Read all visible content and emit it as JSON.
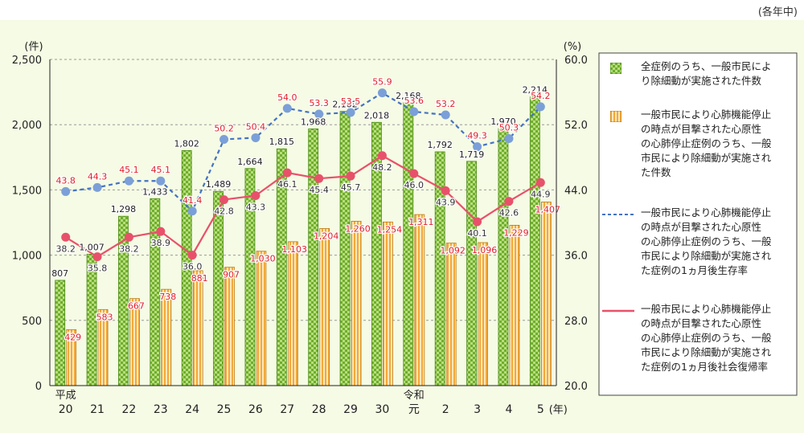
{
  "note": "(各年中)",
  "chart_data": {
    "type": "bar",
    "categories": [
      {
        "top": "平成",
        "bottom": "20"
      },
      {
        "top": "",
        "bottom": "21"
      },
      {
        "top": "",
        "bottom": "22"
      },
      {
        "top": "",
        "bottom": "23"
      },
      {
        "top": "",
        "bottom": "24"
      },
      {
        "top": "",
        "bottom": "25"
      },
      {
        "top": "",
        "bottom": "26"
      },
      {
        "top": "",
        "bottom": "27"
      },
      {
        "top": "",
        "bottom": "28"
      },
      {
        "top": "",
        "bottom": "29"
      },
      {
        "top": "",
        "bottom": "30"
      },
      {
        "top": "令和",
        "bottom": "元"
      },
      {
        "top": "",
        "bottom": "2"
      },
      {
        "top": "",
        "bottom": "3"
      },
      {
        "top": "",
        "bottom": "4"
      },
      {
        "top": "",
        "bottom": "5"
      }
    ],
    "x_unit": "(年)",
    "left_axis": {
      "unit": "(件)",
      "min": 0,
      "max": 2500,
      "ticks": [
        "0",
        "500",
        "1,000",
        "1,500",
        "2,000",
        "2,500"
      ]
    },
    "right_axis": {
      "unit": "(%)",
      "min": 20.0,
      "max": 60.0,
      "ticks": [
        "20.0",
        "28.0",
        "36.0",
        "44.0",
        "52.0",
        "60.0"
      ]
    },
    "grid": "horizontal dashed",
    "legend_position": "right",
    "series": [
      {
        "name": "全症例のうち、一般市民により除細動が実施された件数",
        "kind": "bar",
        "axis": "left",
        "pattern": "green-check",
        "color": "#8dc63f",
        "values": [
          807,
          1007,
          1298,
          1433,
          1802,
          1489,
          1664,
          1815,
          1968,
          2102,
          2018,
          2168,
          1792,
          1719,
          1970,
          2214
        ],
        "labels": [
          "807",
          "1,007",
          "1,298",
          "1,433",
          "1,802",
          "1,489",
          "1,664",
          "1,815",
          "1,968",
          "2,102",
          "2,018",
          "2,168",
          "1,792",
          "1,719",
          "1,970",
          "2,214"
        ]
      },
      {
        "name": "一般市民により心肺機能停止の時点が目撃された心原性の心肺停止症例のうち、一般市民により除細動が実施された件数",
        "kind": "bar",
        "axis": "left",
        "pattern": "orange-stripe",
        "color": "#f5a623",
        "values": [
          429,
          583,
          667,
          738,
          881,
          907,
          1030,
          1103,
          1204,
          1260,
          1254,
          1311,
          1092,
          1096,
          1229,
          1407
        ],
        "labels": [
          "429",
          "583",
          "667",
          "738",
          "881",
          "907",
          "1,030",
          "1,103",
          "1,204",
          "1,260",
          "1,254",
          "1,311",
          "1,092",
          "1,096",
          "1,229",
          "1,407"
        ]
      },
      {
        "name": "一般市民により心肺機能停止の時点が目撃された心原性の心肺停止症例のうち、一般市民により除細動が実施された症例の1ヵ月後生存率",
        "kind": "line",
        "style": "dashed",
        "axis": "right",
        "color": "#4472c4",
        "marker": "#7b9fd8",
        "label_color": "#e0202b",
        "values": [
          43.8,
          44.3,
          45.1,
          45.1,
          41.4,
          50.2,
          50.4,
          54.0,
          53.3,
          53.5,
          55.9,
          53.6,
          53.2,
          49.3,
          50.3,
          54.2
        ],
        "labels": [
          "43.8",
          "44.3",
          "45.1",
          "45.1",
          "41.4",
          "50.2",
          "50.4",
          "54.0",
          "53.3",
          "53.5",
          "55.9",
          "53.6",
          "53.2",
          "49.3",
          "50.3",
          "54.2"
        ]
      },
      {
        "name": "一般市民により心肺機能停止の時点が目撃された心原性の心肺停止症例のうち、一般市民により除細動が実施された症例の1ヵ月後社会復帰率",
        "kind": "line",
        "style": "solid",
        "axis": "right",
        "color": "#e8516a",
        "marker": "#e8516a",
        "label_color": "#333333",
        "values": [
          38.2,
          35.8,
          38.2,
          38.9,
          36.0,
          42.8,
          43.3,
          46.1,
          45.4,
          45.7,
          48.2,
          46.0,
          43.9,
          40.1,
          42.6,
          44.9
        ],
        "labels": [
          "38.2",
          "35.8",
          "38.2",
          "38.9",
          "36.0",
          "42.8",
          "43.3",
          "46.1",
          "45.4",
          "45.7",
          "48.2",
          "46.0",
          "43.9",
          "40.1",
          "42.6",
          "44.9"
        ]
      }
    ],
    "legend_items": [
      {
        "lines": [
          "全症例のうち、一般市民によ",
          "り除細動が実施された件数"
        ]
      },
      {
        "lines": [
          "一般市民により心肺機能停止",
          "の時点が目撃された心原性",
          "の心肺停止症例のうち、一般",
          "市民により除細動が実施され",
          "た件数"
        ]
      },
      {
        "lines": [
          "一般市民により心肺機能停止",
          "の時点が目撃された心原性",
          "の心肺停止症例のうち、一般",
          "市民により除細動が実施され",
          "た症例の1ヵ月後生存率"
        ]
      },
      {
        "lines": [
          "一般市民により心肺機能停止",
          "の時点が目撃された心原性",
          "の心肺停止症例のうち、一般",
          "市民により除細動が実施され",
          "た症例の1ヵ月後社会復帰率"
        ]
      }
    ]
  }
}
